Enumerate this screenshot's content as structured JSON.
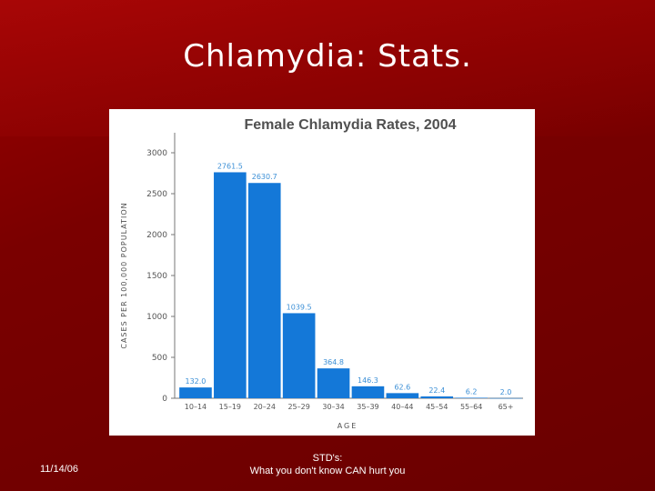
{
  "slide": {
    "title": "Chlamydia: Stats.",
    "date": "11/14/06",
    "footer_line1": "STD's:",
    "footer_line2": "What you don't know CAN hurt you"
  },
  "colors": {
    "bar": "#1478d8",
    "label": "#3b8fd6",
    "title": "#505050"
  },
  "chart_data": {
    "type": "bar",
    "title": "Female Chlamydia Rates, 2004",
    "xlabel": "AGE",
    "ylabel": "CASES PER 100,000 POPULATION",
    "ylim": [
      0,
      3000
    ],
    "yticks": [
      0,
      500,
      1000,
      1500,
      2000,
      2500,
      3000
    ],
    "categories": [
      "10–14",
      "15–19",
      "20–24",
      "25–29",
      "30–34",
      "35–39",
      "40–44",
      "45–54",
      "55–64",
      "65+"
    ],
    "values": [
      132.0,
      2761.5,
      2630.7,
      1039.5,
      364.8,
      146.3,
      62.6,
      22.4,
      6.2,
      2.0
    ],
    "value_labels": [
      "132.0",
      "2761.5",
      "2630.7",
      "1039.5",
      "364.8",
      "146.3",
      "62.6",
      "22.4",
      "6.2",
      "2.0"
    ]
  }
}
